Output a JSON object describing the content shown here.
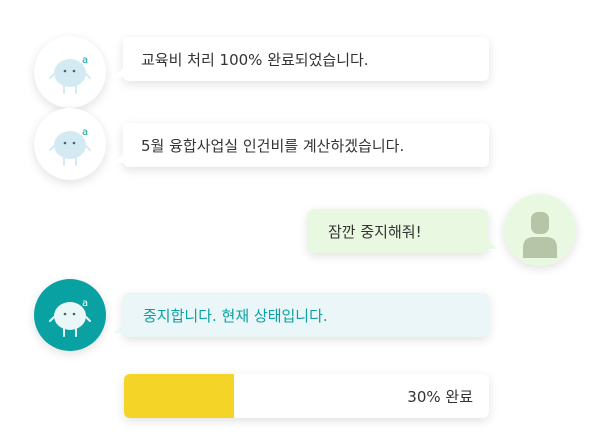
{
  "messages": [
    {
      "sender": "bot",
      "style": "normal",
      "text": "교육비 처리 100% 완료되었습니다."
    },
    {
      "sender": "bot",
      "style": "normal",
      "text": "5월 융합사업실 인건비를 계산하겠습니다."
    },
    {
      "sender": "user",
      "style": "user",
      "text": "잠깐 중지해줘!"
    },
    {
      "sender": "bot",
      "style": "active",
      "text": "중지합니다. 현재 상태입니다."
    }
  ],
  "progress": {
    "percent": 30,
    "label": "30% 완료"
  },
  "colors": {
    "bot_avatar_bg": "#ffffff",
    "bot_avatar_active_bg": "#0aa1a3",
    "user_avatar_bg": "#e9f9e1",
    "user_bubble_bg": "#e9f9e1",
    "active_bubble_bg": "#eaf6f7",
    "active_text": "#0aa1a3",
    "progress_fill": "#f4d527",
    "text": "#333333"
  },
  "icons": {
    "bot": "robot-mascot-icon",
    "user": "user-silhouette-icon"
  }
}
